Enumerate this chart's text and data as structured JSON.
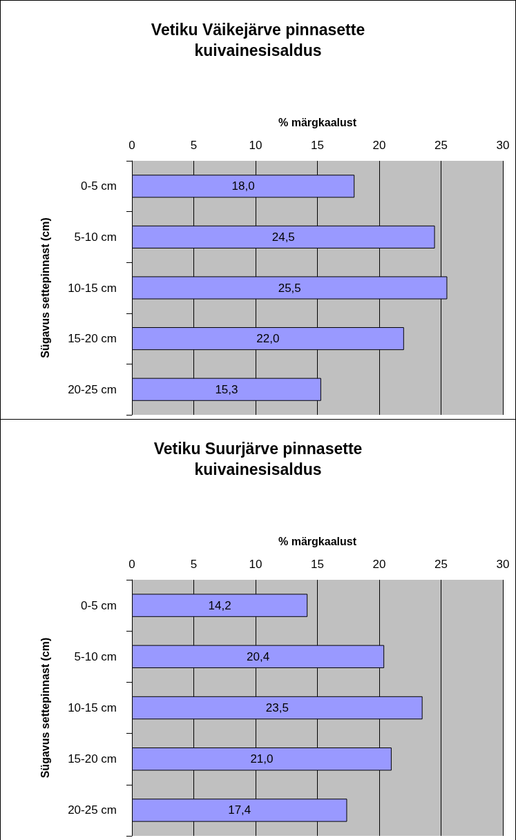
{
  "chart_data": [
    {
      "type": "bar",
      "orientation": "horizontal",
      "title": "Vetiku Väikejärve pinnasette\nkuivainesisaldus",
      "xlabel": "% märgkaalust",
      "ylabel": "Sügavus settepinnast (cm)",
      "categories": [
        "0-5 cm",
        "5-10 cm",
        "10-15 cm",
        "15-20 cm",
        "20-25 cm"
      ],
      "values": [
        18.0,
        24.5,
        25.5,
        22.0,
        15.3
      ],
      "value_labels": [
        "18,0",
        "24,5",
        "25,5",
        "22,0",
        "15,3"
      ],
      "color": "#9999ff",
      "xlim": [
        0,
        30
      ],
      "xticks": [
        0,
        5,
        10,
        15,
        20,
        25,
        30
      ],
      "grid": "x"
    },
    {
      "type": "bar",
      "orientation": "horizontal",
      "title": "Vetiku Suurjärve pinnasette\nkuivainesisaldus",
      "xlabel": "% märgkaalust",
      "ylabel": "Sügavus settepinnast (cm)",
      "categories": [
        "0-5 cm",
        "5-10 cm",
        "10-15 cm",
        "15-20 cm",
        "20-25 cm"
      ],
      "values": [
        14.2,
        20.4,
        23.5,
        21.0,
        17.4
      ],
      "value_labels": [
        "14,2",
        "20,4",
        "23,5",
        "21,0",
        "17,4"
      ],
      "color": "#9999ff",
      "xlim": [
        0,
        30
      ],
      "xticks": [
        0,
        5,
        10,
        15,
        20,
        25,
        30
      ],
      "grid": "x"
    }
  ]
}
